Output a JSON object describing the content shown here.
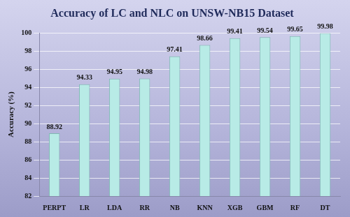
{
  "chart_data": {
    "type": "bar",
    "title": "Accuracy of LC and NLC on UNSW-NB15 Dataset",
    "y_label": "Accuracy (%)",
    "categories": [
      "PERPT",
      "LR",
      "LDA",
      "RR",
      "NB",
      "KNN",
      "XGB",
      "GBM",
      "RF",
      "DT"
    ],
    "values": [
      88.92,
      94.33,
      94.95,
      94.98,
      97.41,
      98.66,
      99.41,
      99.54,
      99.65,
      99.98
    ],
    "color": "#b8ebe6",
    "ylim": [
      82,
      100
    ],
    "yticks": [
      82,
      84,
      86,
      88,
      90,
      92,
      94,
      96,
      98,
      100
    ],
    "grid": true,
    "data_labels": true
  }
}
